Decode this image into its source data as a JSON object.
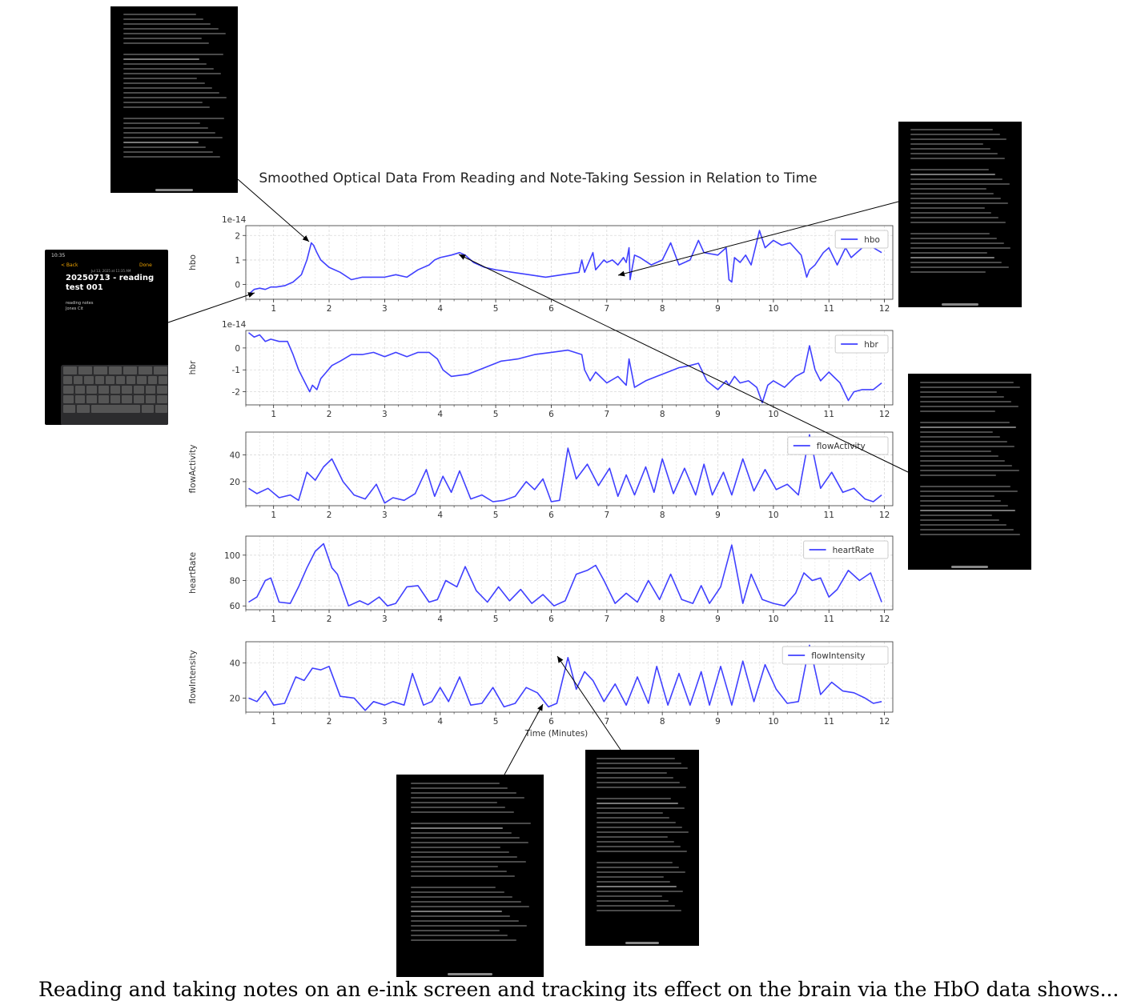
{
  "chart_data": [
    {
      "type": "line",
      "ylabel": "hbo",
      "offset_text": "1e-14",
      "legend": "top-right",
      "grid": true,
      "xlim": [
        0.5,
        12.15
      ],
      "ylim": [
        -0.6,
        2.4
      ],
      "yticks": [
        0,
        1,
        2
      ],
      "xticks": [
        1,
        2,
        3,
        4,
        5,
        6,
        7,
        8,
        9,
        10,
        11,
        12
      ],
      "color": "#4040ff",
      "series": [
        {
          "name": "hbo",
          "x": [
            0.55,
            0.6,
            0.65,
            0.75,
            0.85,
            0.95,
            1.05,
            1.2,
            1.35,
            1.5,
            1.6,
            1.68,
            1.72,
            1.78,
            1.85,
            1.9,
            2.0,
            2.2,
            2.4,
            2.6,
            2.8,
            3.0,
            3.2,
            3.4,
            3.6,
            3.8,
            3.9,
            4.0,
            4.2,
            4.35,
            4.45,
            4.6,
            4.8,
            5.0,
            5.3,
            5.6,
            5.9,
            6.2,
            6.5,
            6.55,
            6.6,
            6.75,
            6.8,
            6.95,
            7.0,
            7.1,
            7.2,
            7.3,
            7.35,
            7.4,
            7.42,
            7.5,
            7.6,
            7.8,
            8.0,
            8.15,
            8.3,
            8.5,
            8.65,
            8.75,
            9.0,
            9.15,
            9.2,
            9.25,
            9.3,
            9.4,
            9.5,
            9.6,
            9.75,
            9.85,
            10.0,
            10.15,
            10.3,
            10.5,
            10.6,
            10.65,
            10.75,
            10.9,
            11.0,
            11.15,
            11.3,
            11.4,
            11.6,
            11.8,
            11.95
          ],
          "values": [
            -0.4,
            -0.3,
            -0.2,
            -0.15,
            -0.2,
            -0.1,
            -0.1,
            -0.05,
            0.1,
            0.4,
            1.0,
            1.7,
            1.6,
            1.3,
            1.0,
            0.9,
            0.7,
            0.5,
            0.2,
            0.3,
            0.3,
            0.3,
            0.4,
            0.3,
            0.6,
            0.8,
            1.0,
            1.1,
            1.2,
            1.3,
            1.2,
            0.9,
            0.7,
            0.6,
            0.5,
            0.4,
            0.3,
            0.4,
            0.5,
            1.0,
            0.5,
            1.3,
            0.6,
            1.0,
            0.9,
            1.0,
            0.8,
            1.1,
            0.9,
            1.5,
            0.2,
            1.2,
            1.1,
            0.8,
            1.0,
            1.7,
            0.8,
            1.0,
            1.8,
            1.3,
            1.2,
            1.5,
            0.2,
            0.1,
            1.1,
            0.9,
            1.2,
            0.8,
            2.2,
            1.5,
            1.8,
            1.6,
            1.7,
            1.2,
            0.3,
            0.6,
            0.8,
            1.3,
            1.5,
            0.8,
            1.5,
            1.1,
            1.5,
            1.5,
            1.3
          ]
        }
      ]
    },
    {
      "type": "line",
      "ylabel": "hbr",
      "offset_text": "1e-14",
      "legend": "top-right",
      "grid": true,
      "xlim": [
        0.5,
        12.15
      ],
      "ylim": [
        -2.6,
        0.8
      ],
      "yticks": [
        -2,
        -1,
        0
      ],
      "xticks": [
        1,
        2,
        3,
        4,
        5,
        6,
        7,
        8,
        9,
        10,
        11,
        12
      ],
      "color": "#4040ff",
      "series": [
        {
          "name": "hbr",
          "x": [
            0.55,
            0.65,
            0.75,
            0.85,
            0.95,
            1.1,
            1.25,
            1.35,
            1.45,
            1.55,
            1.65,
            1.7,
            1.78,
            1.85,
            1.95,
            2.05,
            2.2,
            2.4,
            2.6,
            2.8,
            3.0,
            3.2,
            3.4,
            3.6,
            3.8,
            3.95,
            4.05,
            4.2,
            4.5,
            4.8,
            5.1,
            5.4,
            5.7,
            6.0,
            6.3,
            6.55,
            6.6,
            6.7,
            6.8,
            7.0,
            7.2,
            7.35,
            7.4,
            7.5,
            7.7,
            7.9,
            8.1,
            8.3,
            8.5,
            8.65,
            8.8,
            9.0,
            9.15,
            9.2,
            9.3,
            9.4,
            9.55,
            9.7,
            9.8,
            9.9,
            10.0,
            10.2,
            10.4,
            10.55,
            10.65,
            10.75,
            10.85,
            11.0,
            11.2,
            11.35,
            11.45,
            11.6,
            11.8,
            11.95
          ],
          "values": [
            0.7,
            0.5,
            0.6,
            0.3,
            0.4,
            0.3,
            0.3,
            -0.3,
            -1.0,
            -1.5,
            -2.0,
            -1.7,
            -1.9,
            -1.4,
            -1.1,
            -0.8,
            -0.6,
            -0.3,
            -0.3,
            -0.2,
            -0.4,
            -0.2,
            -0.4,
            -0.2,
            -0.2,
            -0.5,
            -1.0,
            -1.3,
            -1.2,
            -0.9,
            -0.6,
            -0.5,
            -0.3,
            -0.2,
            -0.1,
            -0.3,
            -1.0,
            -1.5,
            -1.1,
            -1.6,
            -1.3,
            -1.7,
            -0.5,
            -1.8,
            -1.5,
            -1.3,
            -1.1,
            -0.9,
            -0.8,
            -0.7,
            -1.5,
            -1.9,
            -1.5,
            -1.7,
            -1.3,
            -1.6,
            -1.5,
            -1.8,
            -2.5,
            -1.7,
            -1.5,
            -1.8,
            -1.3,
            -1.1,
            0.1,
            -1.0,
            -1.5,
            -1.1,
            -1.6,
            -2.4,
            -2.0,
            -1.9,
            -1.9,
            -1.6
          ]
        }
      ]
    },
    {
      "type": "line",
      "ylabel": "flowActivity",
      "legend": "top-right",
      "grid": true,
      "xlim": [
        0.5,
        12.15
      ],
      "ylim": [
        2,
        57
      ],
      "yticks": [
        20,
        40
      ],
      "xticks": [
        1,
        2,
        3,
        4,
        5,
        6,
        7,
        8,
        9,
        10,
        11,
        12
      ],
      "color": "#4040ff",
      "series": [
        {
          "name": "flowActivity",
          "x": [
            0.55,
            0.7,
            0.9,
            1.1,
            1.3,
            1.45,
            1.6,
            1.75,
            1.9,
            2.05,
            2.25,
            2.45,
            2.65,
            2.85,
            3.0,
            3.15,
            3.35,
            3.55,
            3.75,
            3.9,
            4.05,
            4.2,
            4.35,
            4.55,
            4.75,
            4.95,
            5.15,
            5.35,
            5.55,
            5.7,
            5.85,
            6.0,
            6.15,
            6.3,
            6.45,
            6.65,
            6.85,
            7.05,
            7.2,
            7.35,
            7.5,
            7.7,
            7.85,
            8.0,
            8.2,
            8.4,
            8.6,
            8.75,
            8.9,
            9.1,
            9.25,
            9.45,
            9.65,
            9.85,
            10.05,
            10.25,
            10.45,
            10.65,
            10.85,
            11.05,
            11.25,
            11.45,
            11.65,
            11.8,
            11.95
          ],
          "values": [
            15,
            11,
            15,
            8,
            10,
            6,
            27,
            21,
            31,
            37,
            20,
            10,
            7,
            18,
            4,
            8,
            6,
            11,
            29,
            9,
            24,
            12,
            28,
            7,
            10,
            5,
            6,
            9,
            20,
            14,
            22,
            5,
            6,
            45,
            22,
            33,
            17,
            30,
            9,
            25,
            10,
            31,
            12,
            37,
            11,
            30,
            10,
            33,
            10,
            27,
            10,
            37,
            13,
            29,
            14,
            18,
            10,
            55,
            15,
            27,
            12,
            15,
            7,
            5,
            10
          ]
        }
      ]
    },
    {
      "type": "line",
      "ylabel": "heartRate",
      "legend": "top-right",
      "grid": true,
      "xlim": [
        0.5,
        12.15
      ],
      "ylim": [
        57,
        115
      ],
      "yticks": [
        60,
        80,
        100
      ],
      "xticks": [
        1,
        2,
        3,
        4,
        5,
        6,
        7,
        8,
        9,
        10,
        11,
        12
      ],
      "color": "#4040ff",
      "series": [
        {
          "name": "heartRate",
          "x": [
            0.55,
            0.7,
            0.85,
            0.95,
            1.1,
            1.3,
            1.45,
            1.6,
            1.75,
            1.9,
            2.05,
            2.15,
            2.35,
            2.55,
            2.7,
            2.9,
            3.05,
            3.2,
            3.4,
            3.6,
            3.8,
            3.95,
            4.1,
            4.3,
            4.45,
            4.65,
            4.85,
            5.05,
            5.25,
            5.45,
            5.65,
            5.85,
            6.05,
            6.25,
            6.45,
            6.65,
            6.8,
            6.95,
            7.15,
            7.35,
            7.55,
            7.75,
            7.95,
            8.15,
            8.35,
            8.55,
            8.7,
            8.85,
            9.05,
            9.25,
            9.45,
            9.6,
            9.8,
            10.0,
            10.2,
            10.4,
            10.55,
            10.7,
            10.85,
            11.0,
            11.15,
            11.35,
            11.55,
            11.75,
            11.95
          ],
          "values": [
            63,
            67,
            80,
            82,
            63,
            62,
            75,
            90,
            103,
            109,
            90,
            85,
            60,
            64,
            61,
            67,
            60,
            62,
            75,
            76,
            63,
            65,
            80,
            75,
            91,
            72,
            63,
            75,
            64,
            73,
            62,
            69,
            60,
            64,
            85,
            88,
            92,
            80,
            62,
            70,
            63,
            80,
            65,
            85,
            65,
            62,
            76,
            62,
            75,
            108,
            62,
            85,
            65,
            62,
            60,
            70,
            86,
            80,
            82,
            67,
            73,
            88,
            80,
            86,
            63
          ]
        }
      ]
    },
    {
      "type": "line",
      "ylabel": "flowIntensity",
      "xlabel": "Time (Minutes)",
      "legend": "top-right",
      "grid": true,
      "xlim": [
        0.5,
        12.15
      ],
      "ylim": [
        12,
        52
      ],
      "yticks": [
        20,
        40
      ],
      "xticks": [
        1,
        2,
        3,
        4,
        5,
        6,
        7,
        8,
        9,
        10,
        11,
        12
      ],
      "color": "#4040ff",
      "series": [
        {
          "name": "flowIntensity",
          "x": [
            0.55,
            0.7,
            0.85,
            1.0,
            1.2,
            1.4,
            1.55,
            1.7,
            1.85,
            2.0,
            2.2,
            2.45,
            2.65,
            2.8,
            3.0,
            3.15,
            3.35,
            3.5,
            3.7,
            3.85,
            4.0,
            4.15,
            4.35,
            4.55,
            4.75,
            4.95,
            5.15,
            5.35,
            5.55,
            5.75,
            5.95,
            6.1,
            6.3,
            6.45,
            6.6,
            6.75,
            6.95,
            7.15,
            7.35,
            7.55,
            7.75,
            7.9,
            8.1,
            8.3,
            8.5,
            8.7,
            8.85,
            9.05,
            9.25,
            9.45,
            9.65,
            9.85,
            10.05,
            10.25,
            10.45,
            10.65,
            10.85,
            11.05,
            11.25,
            11.45,
            11.65,
            11.8,
            11.95
          ],
          "values": [
            20,
            18,
            24,
            16,
            17,
            32,
            30,
            37,
            36,
            38,
            21,
            20,
            13,
            18,
            16,
            18,
            16,
            34,
            16,
            18,
            26,
            18,
            32,
            16,
            17,
            26,
            15,
            17,
            26,
            23,
            15,
            17,
            43,
            25,
            35,
            30,
            18,
            28,
            16,
            32,
            17,
            38,
            16,
            34,
            16,
            35,
            16,
            38,
            16,
            41,
            18,
            39,
            25,
            17,
            18,
            50,
            22,
            29,
            24,
            23,
            20,
            17,
            18
          ]
        }
      ]
    }
  ],
  "figure": {
    "title": "Smoothed Optical Data From Reading and Note-Taking Session in Relation to Time"
  },
  "phone": {
    "status_time": "10:35",
    "back_label": "< Back",
    "done_label": "Done",
    "date_line": "Jul 13, 2025 at 11:35 AM",
    "note_title": "20250713 - reading test 001",
    "note_line1": "reading notes",
    "note_line2": "Jones Cit"
  },
  "caption": {
    "text": "Reading and taking notes on an e-ink screen and tracking its effect on the brain via the HbO data shows..."
  }
}
